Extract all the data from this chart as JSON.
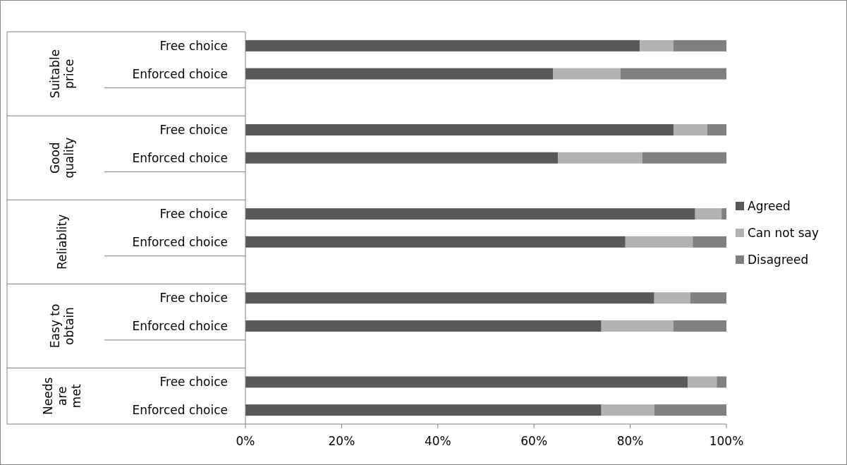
{
  "chart_data": {
    "type": "bar",
    "orientation": "horizontal",
    "stacked": true,
    "categories": [
      "Free choice",
      "Enforced choice",
      null,
      "Free choice",
      "Enforced choice",
      null,
      "Free choice",
      "Enforced choice",
      null,
      "Free choice",
      "Enforced choice",
      null,
      "Free choice",
      "Enforced choice"
    ],
    "series": [
      {
        "name": "Agreed",
        "color": "#595959",
        "values": [
          82,
          64,
          null,
          89,
          65,
          null,
          93.5,
          79,
          null,
          85,
          74,
          null,
          92,
          74
        ]
      },
      {
        "name": "Can not say",
        "color": "#b2b2b2",
        "values": [
          7,
          14,
          null,
          7,
          17.5,
          null,
          5.5,
          14,
          null,
          7.5,
          15,
          null,
          6,
          11
        ]
      },
      {
        "name": "Disagreed",
        "color": "#808080",
        "values": [
          11,
          22,
          null,
          4,
          17.5,
          null,
          1,
          7,
          null,
          7.5,
          11,
          null,
          2,
          15
        ]
      }
    ],
    "xlim": [
      0,
      100
    ],
    "xticks": [
      {
        "value": 0,
        "label": "0%"
      },
      {
        "value": 20,
        "label": "20%"
      },
      {
        "value": 40,
        "label": "40%"
      },
      {
        "value": 60,
        "label": "60%"
      },
      {
        "value": 80,
        "label": "80%"
      },
      {
        "value": 100,
        "label": "100%"
      }
    ],
    "annotations": [
      "Suitable\nprice",
      "Good\nquality",
      "Reliablity",
      "Easy to\nobtain",
      "Needs\nare\nmet"
    ],
    "grid": false,
    "legend": "right"
  }
}
